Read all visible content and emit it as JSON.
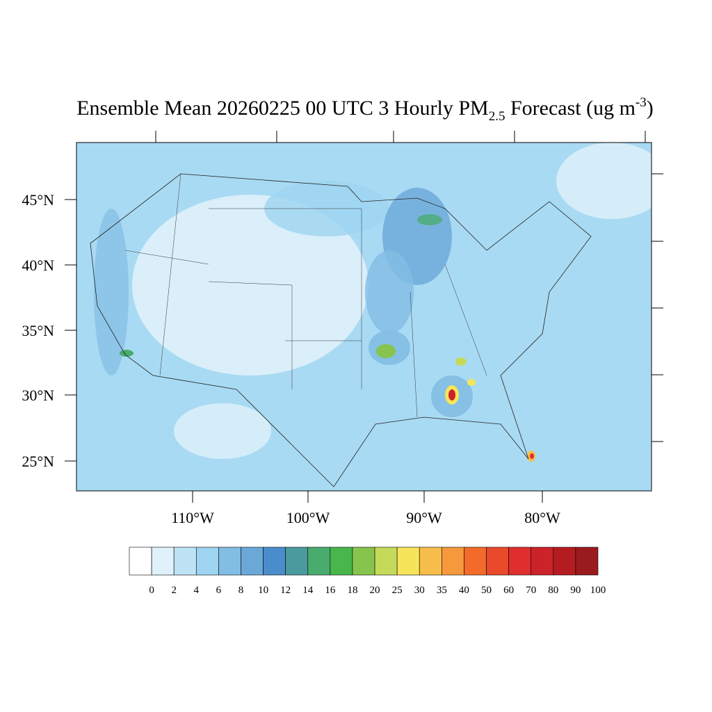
{
  "title": {
    "main": "Ensemble Mean 20260225 00 UTC 3 Hourly PM",
    "subscript": "2.5",
    "middle": " Forecast (ug m",
    "superscript": "-3",
    "end": ")"
  },
  "map": {
    "lat_labels": [
      "45°N",
      "40°N",
      "35°N",
      "30°N",
      "25°N"
    ],
    "lon_labels": [
      "110°W",
      "100°W",
      "90°W",
      "80°W"
    ]
  },
  "colorbar": {
    "labels": [
      "0",
      "2",
      "4",
      "6",
      "8",
      "10",
      "12",
      "14",
      "16",
      "18",
      "20",
      "25",
      "30",
      "35",
      "40",
      "50",
      "60",
      "70",
      "80",
      "90",
      "100"
    ],
    "colors": [
      "#ffffff",
      "#dff1fa",
      "#bde3f5",
      "#9ed4f0",
      "#82bde3",
      "#6aa8d8",
      "#4a8dcb",
      "#4a9a9e",
      "#4aab6f",
      "#48b64a",
      "#87c44d",
      "#c5d95a",
      "#f6e55a",
      "#f7bd4a",
      "#f6993d",
      "#f26b2a",
      "#e84a2b",
      "#de2f2e",
      "#cc2229",
      "#b51c22",
      "#9a1a1e"
    ]
  }
}
